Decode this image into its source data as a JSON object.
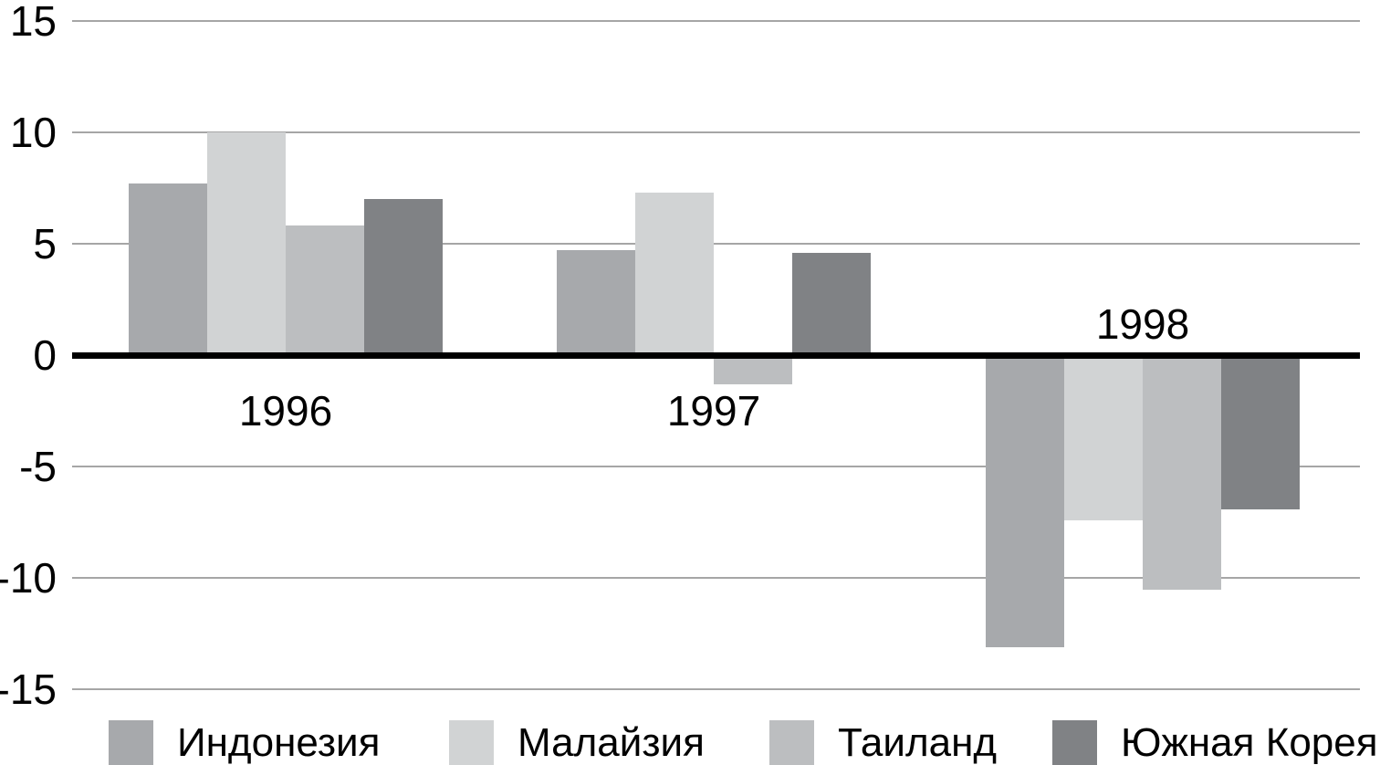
{
  "chart_data": {
    "type": "bar",
    "title": "",
    "xlabel": "",
    "ylabel": "",
    "categories": [
      "1996",
      "1997",
      "1998"
    ],
    "series": [
      {
        "name": "Индонезия",
        "slug": "indonesia",
        "color": "#a7a9ac",
        "values": [
          7.7,
          4.7,
          -13.1
        ]
      },
      {
        "name": "Малайзия",
        "slug": "malaysia",
        "color": "#d1d3d4",
        "values": [
          10.0,
          7.3,
          -7.4
        ]
      },
      {
        "name": "Таиланд",
        "slug": "thailand",
        "color": "#bcbec0",
        "values": [
          5.8,
          -1.3,
          -10.5
        ]
      },
      {
        "name": "Южная Корея",
        "slug": "south-korea",
        "color": "#808285",
        "values": [
          7.0,
          4.6,
          -6.9
        ]
      }
    ],
    "ylim": [
      -15,
      15
    ],
    "yticks": [
      15,
      10,
      5,
      0,
      -5,
      -10,
      -15
    ],
    "grid": true,
    "zero_axis_color": "#000000",
    "gridline_color": "#a6a6a6",
    "legend_position": "bottom"
  }
}
